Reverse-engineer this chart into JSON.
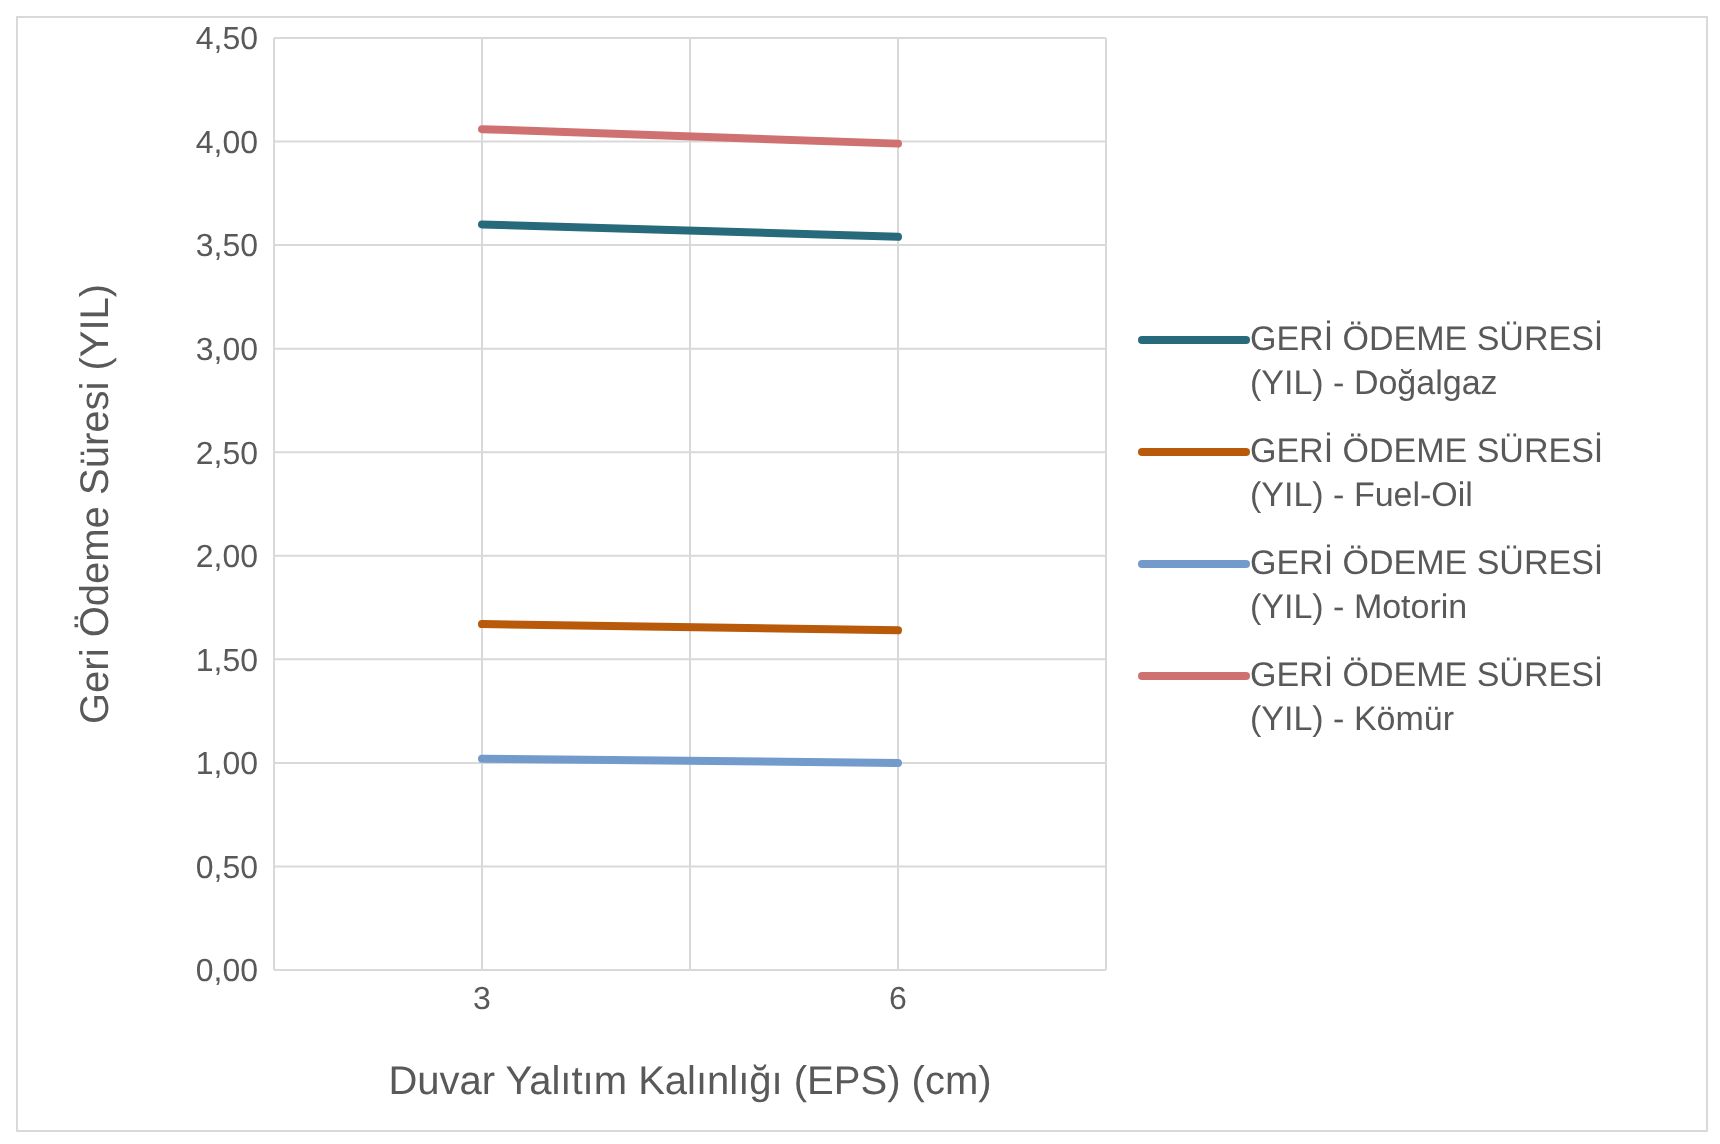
{
  "chart_data": {
    "type": "line",
    "xlabel": "Duvar Yalıtım Kalınlığı (EPS) (cm)",
    "ylabel": "Geri Ödeme Süresi (YIL)",
    "categories": [
      "3",
      "6"
    ],
    "series": [
      {
        "name": "GERİ ÖDEME SÜRESİ (YIL) - Doğalgaz",
        "color": "#276a7c",
        "values": [
          3.6,
          3.54
        ]
      },
      {
        "name": "GERİ ÖDEME SÜRESİ (YIL) - Fuel-Oil",
        "color": "#b95a0b",
        "values": [
          1.67,
          1.64
        ]
      },
      {
        "name": "GERİ ÖDEME SÜRESİ (YIL) - Motorin",
        "color": "#729acb",
        "values": [
          1.02,
          1.0
        ]
      },
      {
        "name": "GERİ ÖDEME SÜRESİ (YIL) - Kömür",
        "color": "#cf7171",
        "values": [
          4.06,
          3.99
        ]
      }
    ],
    "ylim": [
      0,
      4.5
    ],
    "yticks": [
      {
        "value": 0,
        "label": "0,00"
      },
      {
        "value": 0.5,
        "label": "0,50"
      },
      {
        "value": 1,
        "label": "1,00"
      },
      {
        "value": 1.5,
        "label": "1,50"
      },
      {
        "value": 2,
        "label": "2,00"
      },
      {
        "value": 2.5,
        "label": "2,50"
      },
      {
        "value": 3,
        "label": "3,00"
      },
      {
        "value": 3.5,
        "label": "3,50"
      },
      {
        "value": 4,
        "label": "4,00"
      },
      {
        "value": 4.5,
        "label": "4,50"
      }
    ],
    "grid": true,
    "legend": "right",
    "marker": "none",
    "line_style": "solid"
  }
}
